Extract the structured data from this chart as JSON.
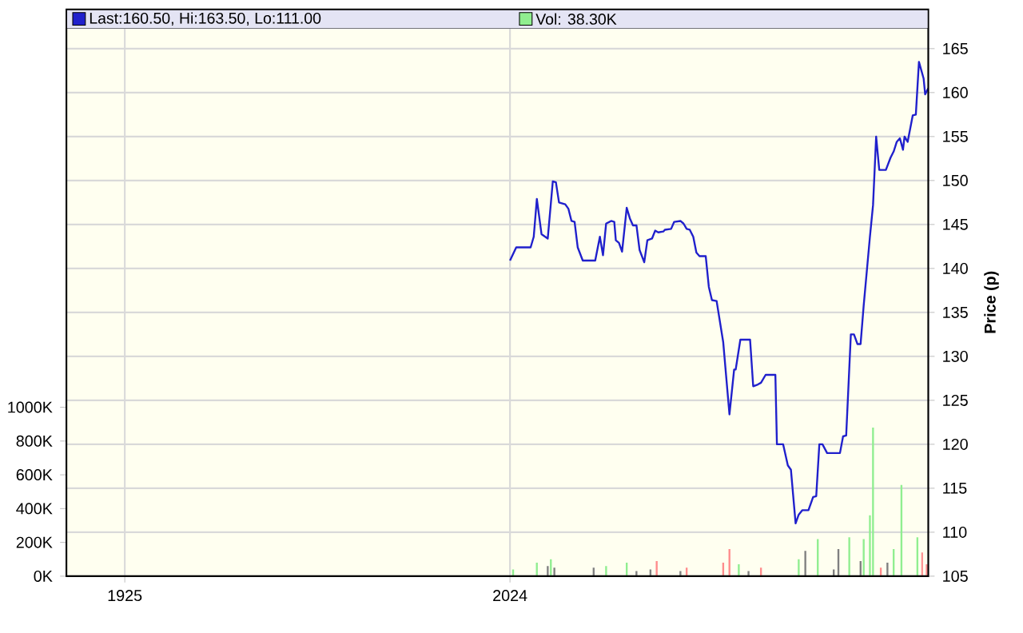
{
  "chart_data": {
    "type": "line",
    "legend": "top",
    "grid": true,
    "marker": "none",
    "line_style": "solid",
    "ylabel": "Price (p)",
    "xlim": [
      1910,
      2131.5
    ],
    "xticks": [
      1925,
      2024
    ],
    "ylim": [
      105,
      167.3
    ],
    "yticks": [
      105,
      110,
      115,
      120,
      125,
      130,
      135,
      140,
      145,
      150,
      155,
      160,
      165
    ],
    "y2lim": [
      0,
      3243
    ],
    "y2ticks": [
      {
        "value": 0,
        "label": "0K"
      },
      {
        "value": 200,
        "label": "200K"
      },
      {
        "value": 400,
        "label": "400K"
      },
      {
        "value": 600,
        "label": "600K"
      },
      {
        "value": 800,
        "label": "800K"
      },
      {
        "value": 1000,
        "label": "1000K"
      }
    ],
    "series": [
      {
        "name": "Last:160.50, Hi:163.50, Lo:111.00",
        "color": "#2020cc",
        "x": [
          2024,
          2025.6,
          2029.3,
          2030.1,
          2030.9,
          2032.1,
          2033.7,
          2035,
          2035.8,
          2036.6,
          2038.2,
          2039,
          2039.8,
          2040.6,
          2041.4,
          2042.7,
          2045.9,
          2047.1,
          2047.9,
          2048.7,
          2050,
          2050.8,
          2051.2,
          2052,
          2052.8,
          2054,
          2054.8,
          2055.6,
          2056.5,
          2057.3,
          2058.5,
          2059.3,
          2060.5,
          2061.3,
          2062.1,
          2063.4,
          2063.8,
          2065.4,
          2066.2,
          2067.8,
          2068.6,
          2069.4,
          2070.2,
          2071.1,
          2071.9,
          2072.7,
          2074.3,
          2075.1,
          2075.9,
          2077.1,
          2078.8,
          2080.4,
          2081.6,
          2082,
          2083.2,
          2085.7,
          2086.5,
          2087.7,
          2088.5,
          2089.7,
          2092.2,
          2092.6,
          2094.2,
          2095.4,
          2096.2,
          2097.4,
          2098.2,
          2099.1,
          2100.7,
          2101.9,
          2102.7,
          2103.5,
          2104.3,
          2105.5,
          2108.8,
          2109.6,
          2110.4,
          2111.6,
          2112.4,
          2113.3,
          2114.1,
          2114.9,
          2116.5,
          2117.3,
          2118.1,
          2118.9,
          2120.6,
          2121.8,
          2122.6,
          2123.4,
          2124.2,
          2125,
          2125.4,
          2126.2,
          2127.5,
          2128.3,
          2129.1,
          2130.3,
          2130.7,
          2131.5
        ],
        "values": [
          140.9,
          142.4,
          142.4,
          143.6,
          147.9,
          143.9,
          143.4,
          149.9,
          149.8,
          147.5,
          147.3,
          146.8,
          145.4,
          145.3,
          142.4,
          140.9,
          140.9,
          143.6,
          141.5,
          145.1,
          145.4,
          145.3,
          143.2,
          142.9,
          141.9,
          146.9,
          145.7,
          144.9,
          144.9,
          142.1,
          140.7,
          143.2,
          143.4,
          144.3,
          144.1,
          144.2,
          144.4,
          144.5,
          145.3,
          145.4,
          145.1,
          144.5,
          144.4,
          143.6,
          141.8,
          141.4,
          141.4,
          137.9,
          136.4,
          136.3,
          131.6,
          123.4,
          128.5,
          128.5,
          131.9,
          131.9,
          126.6,
          126.8,
          127.0,
          127.9,
          127.9,
          120.0,
          120.0,
          117.6,
          117.1,
          111.0,
          112.0,
          112.5,
          112.5,
          114.0,
          114.1,
          120.0,
          120.0,
          119.0,
          119.0,
          120.9,
          121.0,
          132.5,
          132.5,
          131.4,
          131.4,
          135.8,
          143.6,
          147.2,
          155.0,
          151.2,
          151.2,
          152.6,
          153.3,
          154.4,
          154.8,
          153.5,
          155.0,
          154.4,
          157.4,
          157.5,
          163.5,
          161.6,
          159.8,
          160.5
        ]
      },
      {
        "name": "Vol: 38.30K",
        "type": "bar",
        "axis": "y2",
        "color": "#90ee90",
        "x": [
          2024.8,
          2030.9,
          2033.7,
          2034.5,
          2035.4,
          2045.5,
          2048.7,
          2054,
          2056.5,
          2060.1,
          2061.7,
          2067.8,
          2069.4,
          2078.8,
          2080.4,
          2082.8,
          2085.3,
          2088.5,
          2098.2,
          2099.9,
          2103.1,
          2107.2,
          2108.4,
          2111.2,
          2114.1,
          2114.9,
          2116.5,
          2117.3,
          2119.3,
          2121,
          2122.6,
          2124.6,
          2128.7,
          2129.9,
          2131.1
        ],
        "values": [
          40,
          80,
          60,
          100,
          50,
          50,
          60,
          80,
          30,
          40,
          90,
          30,
          50,
          80,
          160,
          70,
          30,
          50,
          100,
          150,
          220,
          40,
          160,
          230,
          90,
          220,
          360,
          880,
          50,
          80,
          160,
          540,
          230,
          140,
          70
        ],
        "colors": [
          "#90ee90",
          "#90ee90",
          "#808080",
          "#90ee90",
          "#808080",
          "#808080",
          "#90ee90",
          "#90ee90",
          "#808080",
          "#808080",
          "#ff8c8c",
          "#808080",
          "#ff8c8c",
          "#ff8c8c",
          "#ff8c8c",
          "#90ee90",
          "#808080",
          "#ff8c8c",
          "#90ee90",
          "#808080",
          "#90ee90",
          "#808080",
          "#808080",
          "#90ee90",
          "#808080",
          "#90ee90",
          "#90ee90",
          "#90ee90",
          "#ff8c8c",
          "#808080",
          "#90ee90",
          "#90ee90",
          "#90ee90",
          "#ff8c8c",
          "#ff8c8c"
        ]
      }
    ]
  }
}
